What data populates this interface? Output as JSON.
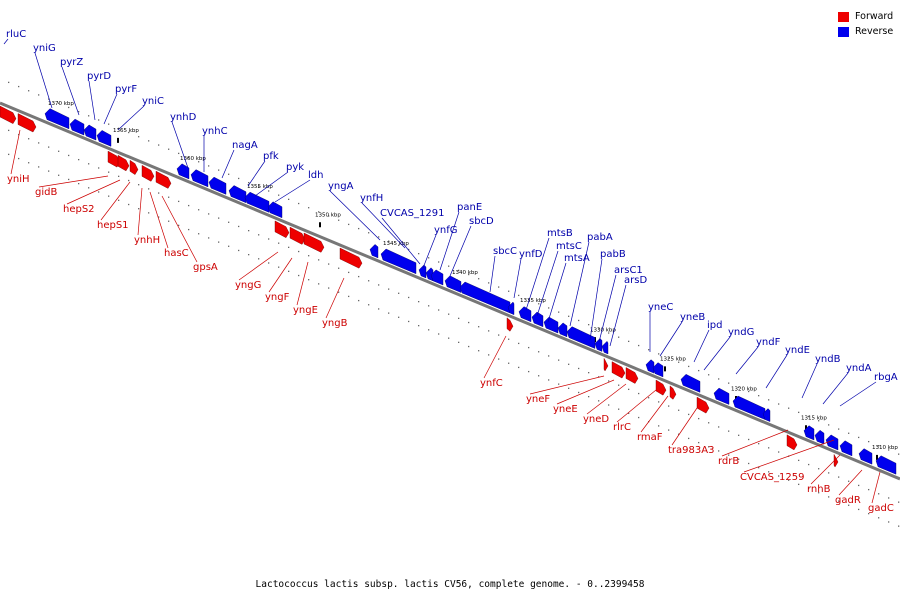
{
  "legend": {
    "items": [
      {
        "label": "Forward",
        "color": "#ee0000"
      },
      {
        "label": "Reverse",
        "color": "#0000ee"
      }
    ]
  },
  "caption": "Lactococcus lactis subsp. lactis CV56, complete genome. - 0..2399458",
  "colors": {
    "forward": "#ee0000",
    "reverse": "#0000ee",
    "forward_label": "#cc0000",
    "reverse_label": "#0000aa",
    "backbone": "#777777"
  },
  "ticks": [
    "1370 kbp",
    "1365 kbp",
    "1360 kbp",
    "1355 kbp",
    "1350 kbp",
    "1345 kbp",
    "1340 kbp",
    "1335 kbp",
    "1330 kbp",
    "1325 kbp",
    "1320 kbp",
    "1315 kbp",
    "1310 kbp"
  ],
  "reverse_genes": [
    "rluC",
    "yniG",
    "pyrZ",
    "pyrD",
    "pyrF",
    "yniC",
    "ynhD",
    "ynhC",
    "nagA",
    "pfk",
    "pyk",
    "ldh",
    "yngA",
    "ynfH",
    "CVCAS_1291",
    "ynfG",
    "panE",
    "sbcD",
    "sbcC",
    "ynfD",
    "mtsB",
    "mtsC",
    "mtsA",
    "pabA",
    "pabB",
    "arsC1",
    "arsD",
    "yneC",
    "yneB",
    "ipd",
    "yndG",
    "yndF",
    "yndE",
    "yndB",
    "yndA",
    "rbgA"
  ],
  "forward_genes": [
    "yniH",
    "gidB",
    "hepS2",
    "hepS1",
    "ynhH",
    "hasC",
    "gpsA",
    "yngG",
    "yngF",
    "yngE",
    "yngB",
    "ynfC",
    "yneF",
    "yneE",
    "yneD",
    "rlrC",
    "rmaF",
    "tra983A3",
    "rdrB",
    "CVCAS_1259",
    "rnhB",
    "gadR",
    "gadC"
  ]
}
